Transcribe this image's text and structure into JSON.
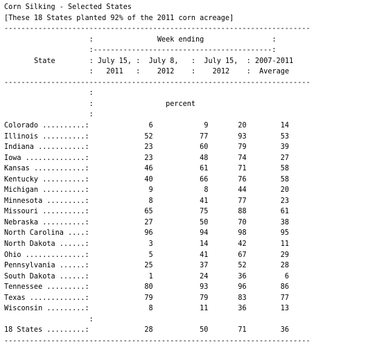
{
  "document": {
    "title": "Corn Silking - Selected States",
    "subtitle": "[These 18 States planted 92% of the 2011 corn acreage]",
    "header": {
      "group_label": "Week ending",
      "state_label": "State",
      "columns": [
        {
          "line1": "July 15,",
          "line2": "2011"
        },
        {
          "line1": "July 8,",
          "line2": "2012"
        },
        {
          "line1": "July 15,",
          "line2": "2012"
        },
        {
          "line1": "2007-2011",
          "line2": "Average"
        }
      ],
      "unit_label": "percent"
    },
    "rows": [
      {
        "state": "Colorado",
        "values": [
          "6",
          "9",
          "20",
          "14"
        ]
      },
      {
        "state": "Illinois",
        "values": [
          "52",
          "77",
          "93",
          "53"
        ]
      },
      {
        "state": "Indiana",
        "values": [
          "23",
          "60",
          "79",
          "39"
        ]
      },
      {
        "state": "Iowa",
        "values": [
          "23",
          "48",
          "74",
          "27"
        ]
      },
      {
        "state": "Kansas",
        "values": [
          "46",
          "61",
          "71",
          "58"
        ]
      },
      {
        "state": "Kentucky",
        "values": [
          "40",
          "66",
          "76",
          "58"
        ]
      },
      {
        "state": "Michigan",
        "values": [
          "9",
          "8",
          "44",
          "20"
        ]
      },
      {
        "state": "Minnesota",
        "values": [
          "8",
          "41",
          "77",
          "23"
        ]
      },
      {
        "state": "Missouri",
        "values": [
          "65",
          "75",
          "88",
          "61"
        ]
      },
      {
        "state": "Nebraska",
        "values": [
          "27",
          "50",
          "70",
          "38"
        ]
      },
      {
        "state": "North Carolina",
        "values": [
          "96",
          "94",
          "98",
          "95"
        ]
      },
      {
        "state": "North Dakota",
        "values": [
          "3",
          "14",
          "42",
          "11"
        ]
      },
      {
        "state": "Ohio",
        "values": [
          "5",
          "41",
          "67",
          "29"
        ]
      },
      {
        "state": "Pennsylvania",
        "values": [
          "25",
          "37",
          "52",
          "28"
        ]
      },
      {
        "state": "South Dakota",
        "values": [
          "1",
          "24",
          "36",
          "6"
        ]
      },
      {
        "state": "Tennessee",
        "values": [
          "80",
          "93",
          "96",
          "86"
        ]
      },
      {
        "state": "Texas",
        "values": [
          "79",
          "79",
          "83",
          "77"
        ]
      },
      {
        "state": "Wisconsin",
        "values": [
          "8",
          "11",
          "36",
          "13"
        ]
      }
    ],
    "total": {
      "state": "18 States",
      "values": [
        "28",
        "50",
        "71",
        "36"
      ]
    }
  }
}
